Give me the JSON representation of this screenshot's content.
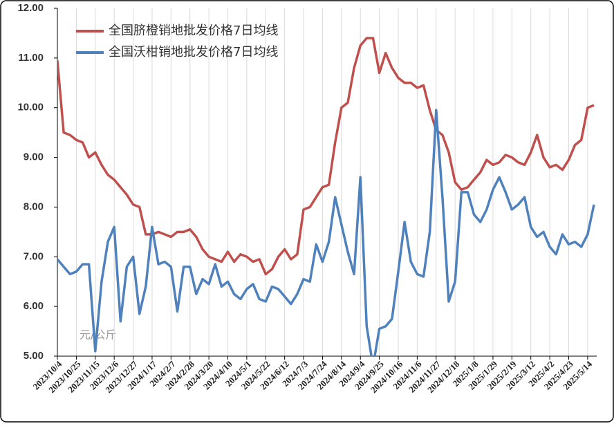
{
  "chart_data": {
    "type": "line",
    "y_unit_label": "元/公斤",
    "x": [
      "2023/10/4",
      "2023/10/11",
      "2023/10/18",
      "2023/10/25",
      "2023/11/1",
      "2023/11/8",
      "2023/11/15",
      "2023/11/22",
      "2023/11/29",
      "2023/12/6",
      "2023/12/13",
      "2023/12/20",
      "2023/12/27",
      "2024/1/3",
      "2024/1/10",
      "2024/1/17",
      "2024/1/24",
      "2024/1/31",
      "2024/2/7",
      "2024/2/14",
      "2024/2/21",
      "2024/2/28",
      "2024/3/6",
      "2024/3/13",
      "2024/3/20",
      "2024/3/27",
      "2024/4/3",
      "2024/4/10",
      "2024/4/17",
      "2024/4/24",
      "2024/5/1",
      "2024/5/8",
      "2024/5/15",
      "2024/5/22",
      "2024/5/29",
      "2024/6/5",
      "2024/6/12",
      "2024/6/19",
      "2024/6/26",
      "2024/7/3",
      "2024/7/10",
      "2024/7/17",
      "2024/7/24",
      "2024/7/31",
      "2024/8/7",
      "2024/8/14",
      "2024/8/21",
      "2024/8/28",
      "2024/9/4",
      "2024/9/11",
      "2024/9/18",
      "2024/9/25",
      "2024/10/2",
      "2024/10/9",
      "2024/10/16",
      "2024/10/23",
      "2024/10/30",
      "2024/11/6",
      "2024/11/13",
      "2024/11/20",
      "2024/11/27",
      "2024/12/4",
      "2024/12/11",
      "2024/12/18",
      "2024/12/25",
      "2025/1/1",
      "2025/1/8",
      "2025/1/15",
      "2025/1/22",
      "2025/1/29",
      "2025/2/5",
      "2025/2/12",
      "2025/2/19",
      "2025/2/26",
      "2025/3/5",
      "2025/3/12",
      "2025/3/19",
      "2025/3/26",
      "2025/4/2",
      "2025/4/9",
      "2025/4/16",
      "2025/4/23",
      "2025/4/30",
      "2025/5/7",
      "2025/5/14",
      "2025/5/21"
    ],
    "series": [
      {
        "name": "全国脐橙销地批发价格7日均线",
        "color": "#c0504d",
        "values": [
          10.95,
          9.5,
          9.45,
          9.35,
          9.3,
          9.0,
          9.1,
          8.85,
          8.65,
          8.55,
          8.4,
          8.25,
          8.05,
          8.0,
          7.45,
          7.45,
          7.5,
          7.45,
          7.4,
          7.5,
          7.5,
          7.55,
          7.4,
          7.15,
          7.0,
          6.95,
          6.9,
          7.1,
          6.9,
          7.05,
          7.0,
          6.9,
          6.95,
          6.65,
          6.75,
          7.0,
          7.15,
          6.95,
          7.05,
          7.95,
          8.0,
          8.2,
          8.4,
          8.45,
          9.3,
          10.0,
          10.1,
          10.8,
          11.25,
          11.4,
          11.4,
          10.7,
          11.1,
          10.8,
          10.6,
          10.5,
          10.5,
          10.4,
          10.45,
          9.95,
          9.55,
          9.45,
          9.1,
          8.5,
          8.35,
          8.4,
          8.55,
          8.7,
          8.95,
          8.85,
          8.9,
          9.05,
          9.0,
          8.9,
          8.85,
          9.1,
          9.45,
          9.0,
          8.8,
          8.85,
          8.75,
          8.95,
          9.25,
          9.35,
          10.0,
          10.05
        ]
      },
      {
        "name": "全国沃柑销地批发价格7日均线",
        "color": "#4f81bd",
        "values": [
          6.95,
          6.8,
          6.65,
          6.7,
          6.85,
          6.85,
          5.1,
          6.5,
          7.3,
          7.6,
          5.7,
          6.8,
          7.0,
          5.85,
          6.4,
          7.6,
          6.85,
          6.9,
          6.8,
          5.9,
          6.8,
          6.8,
          6.25,
          6.55,
          6.45,
          6.85,
          6.4,
          6.5,
          6.25,
          6.15,
          6.35,
          6.45,
          6.15,
          6.1,
          6.4,
          6.35,
          6.2,
          6.05,
          6.25,
          6.55,
          6.5,
          7.25,
          6.9,
          7.3,
          8.2,
          7.65,
          7.1,
          6.65,
          8.6,
          5.6,
          4.8,
          5.55,
          5.6,
          5.75,
          6.7,
          7.7,
          6.9,
          6.65,
          6.6,
          7.5,
          9.95,
          8.2,
          6.1,
          6.5,
          8.3,
          8.3,
          7.85,
          7.7,
          7.95,
          8.35,
          8.6,
          8.3,
          7.95,
          8.05,
          8.2,
          7.6,
          7.4,
          7.5,
          7.2,
          7.05,
          7.45,
          7.25,
          7.3,
          7.2,
          7.45,
          8.05
        ]
      }
    ],
    "xlim": [
      "2023/10/4",
      "2025/5/21"
    ],
    "xticks": [
      "2023/10/4",
      "2023/10/25",
      "2023/11/15",
      "2023/12/6",
      "2023/12/27",
      "2024/1/17",
      "2024/2/7",
      "2024/2/28",
      "2024/3/20",
      "2024/4/10",
      "2024/5/1",
      "2024/5/22",
      "2024/6/12",
      "2024/7/3",
      "2024/7/24",
      "2024/8/14",
      "2024/9/4",
      "2024/9/25",
      "2024/10/16",
      "2024/11/6",
      "2024/11/27",
      "2024/12/18",
      "2025/1/8",
      "2025/1/29",
      "2025/2/19",
      "2025/3/12",
      "2025/4/2",
      "2025/4/23",
      "2025/5/14"
    ],
    "ylim": [
      5,
      12
    ],
    "yticks": [
      {
        "value": 5,
        "label": "5.00"
      },
      {
        "value": 6,
        "label": "6.00"
      },
      {
        "value": 7,
        "label": "7.00"
      },
      {
        "value": 8,
        "label": "8.00"
      },
      {
        "value": 9,
        "label": "9.00"
      },
      {
        "value": 10,
        "label": "10.00"
      },
      {
        "value": 11,
        "label": "11.00"
      },
      {
        "value": 12,
        "label": "12.00"
      }
    ],
    "grid": "x",
    "legend": "upper left"
  }
}
